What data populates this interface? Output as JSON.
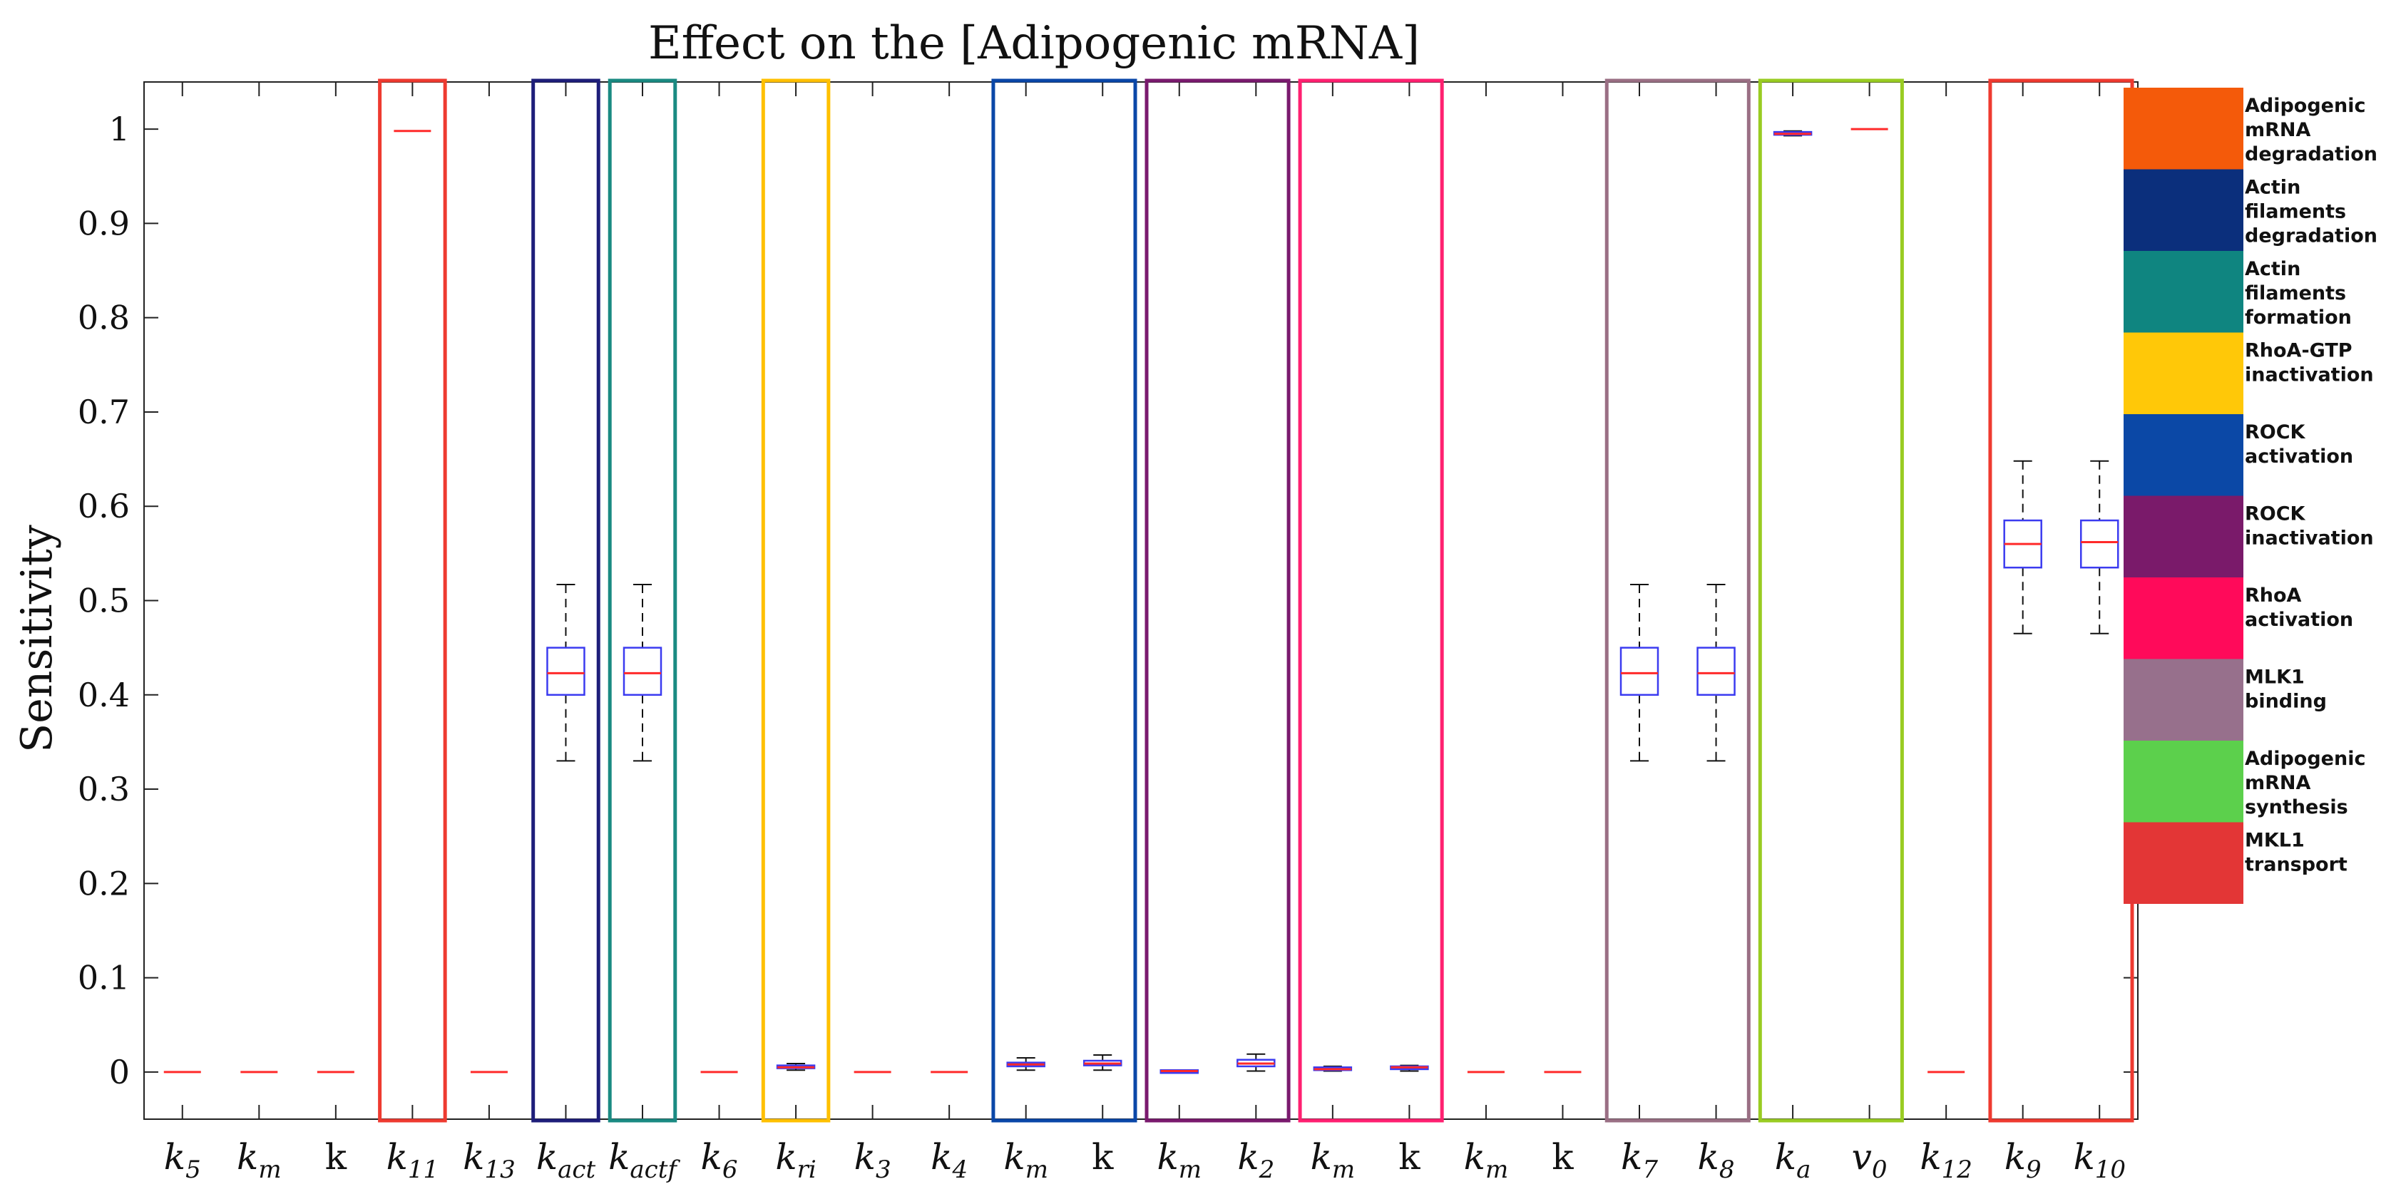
{
  "chart_data": {
    "type": "box",
    "title": "Effect on the [Adipogenic mRNA]",
    "ylabel": "Sensitivity",
    "xlabel": "",
    "ylim": [
      -0.05,
      1.05
    ],
    "yticks": [
      "0",
      "0.1",
      "0.2",
      "0.3",
      "0.4",
      "0.5",
      "0.6",
      "0.7",
      "0.8",
      "0.9",
      "1"
    ],
    "ytick_values": [
      0,
      0.1,
      0.2,
      0.3,
      0.4,
      0.5,
      0.6,
      0.7,
      0.8,
      0.9,
      1.0
    ],
    "categories": [
      {
        "base": "k",
        "sub": "5",
        "italic": true
      },
      {
        "base": "k",
        "sub": "m",
        "italic": true
      },
      {
        "base": "k",
        "sub": "",
        "italic": false
      },
      {
        "base": "k",
        "sub": "11",
        "italic": true
      },
      {
        "base": "k",
        "sub": "13",
        "italic": true
      },
      {
        "base": "k",
        "sub": "act",
        "italic": true
      },
      {
        "base": "k",
        "sub": "actf",
        "italic": true
      },
      {
        "base": "k",
        "sub": "6",
        "italic": true
      },
      {
        "base": "k",
        "sub": "ri",
        "italic": true
      },
      {
        "base": "k",
        "sub": "3",
        "italic": true
      },
      {
        "base": "k",
        "sub": "4",
        "italic": true
      },
      {
        "base": "k",
        "sub": "m",
        "italic": true
      },
      {
        "base": "k",
        "sub": "",
        "italic": false
      },
      {
        "base": "k",
        "sub": "m",
        "italic": true
      },
      {
        "base": "k",
        "sub": "2",
        "italic": true
      },
      {
        "base": "k",
        "sub": "m",
        "italic": true
      },
      {
        "base": "k",
        "sub": "",
        "italic": false
      },
      {
        "base": "k",
        "sub": "m",
        "italic": true
      },
      {
        "base": "k",
        "sub": "",
        "italic": false
      },
      {
        "base": "k",
        "sub": "7",
        "italic": true
      },
      {
        "base": "k",
        "sub": "8",
        "italic": true
      },
      {
        "base": "k",
        "sub": "a",
        "italic": true
      },
      {
        "base": "v",
        "sub": "0",
        "italic": true
      },
      {
        "base": "k",
        "sub": "12",
        "italic": true
      },
      {
        "base": "k",
        "sub": "9",
        "italic": true
      },
      {
        "base": "k",
        "sub": "10",
        "italic": true
      }
    ],
    "boxes": [
      {
        "min": 0,
        "q1": 0,
        "median": 0,
        "q3": 0,
        "max": 0
      },
      {
        "min": 0,
        "q1": 0,
        "median": 0,
        "q3": 0,
        "max": 0
      },
      {
        "min": 0,
        "q1": 0,
        "median": 0,
        "q3": 0,
        "max": 0
      },
      {
        "min": 0.998,
        "q1": 0.998,
        "median": 0.998,
        "q3": 0.998,
        "max": 0.998
      },
      {
        "min": 0,
        "q1": 0,
        "median": 0,
        "q3": 0,
        "max": 0
      },
      {
        "min": 0.33,
        "q1": 0.4,
        "median": 0.423,
        "q3": 0.45,
        "max": 0.517
      },
      {
        "min": 0.33,
        "q1": 0.4,
        "median": 0.423,
        "q3": 0.45,
        "max": 0.517
      },
      {
        "min": 0,
        "q1": 0,
        "median": 0,
        "q3": 0,
        "max": 0
      },
      {
        "min": 0.002,
        "q1": 0.004,
        "median": 0.005,
        "q3": 0.007,
        "max": 0.009
      },
      {
        "min": 0,
        "q1": 0,
        "median": 0,
        "q3": 0,
        "max": 0
      },
      {
        "min": 0,
        "q1": 0,
        "median": 0,
        "q3": 0,
        "max": 0
      },
      {
        "min": 0.002,
        "q1": 0.006,
        "median": 0.008,
        "q3": 0.01,
        "max": 0.015
      },
      {
        "min": 0.002,
        "q1": 0.007,
        "median": 0.009,
        "q3": 0.012,
        "max": 0.018
      },
      {
        "min": 0,
        "q1": 0,
        "median": 0.001,
        "q3": 0.002,
        "max": 0.002
      },
      {
        "min": 0.001,
        "q1": 0.006,
        "median": 0.009,
        "q3": 0.013,
        "max": 0.019
      },
      {
        "min": 0.001,
        "q1": 0.002,
        "median": 0.003,
        "q3": 0.005,
        "max": 0.006
      },
      {
        "min": 0.001,
        "q1": 0.003,
        "median": 0.005,
        "q3": 0.006,
        "max": 0.007
      },
      {
        "min": 0,
        "q1": 0,
        "median": 0,
        "q3": 0,
        "max": 0
      },
      {
        "min": 0,
        "q1": 0,
        "median": 0,
        "q3": 0,
        "max": 0
      },
      {
        "min": 0.33,
        "q1": 0.4,
        "median": 0.423,
        "q3": 0.45,
        "max": 0.517
      },
      {
        "min": 0.33,
        "q1": 0.4,
        "median": 0.423,
        "q3": 0.45,
        "max": 0.517
      },
      {
        "min": 0.993,
        "q1": 0.994,
        "median": 0.995,
        "q3": 0.997,
        "max": 0.998
      },
      {
        "min": 1.0,
        "q1": 1.0,
        "median": 1.0,
        "q3": 1.0,
        "max": 1.0
      },
      {
        "min": 0,
        "q1": 0,
        "median": 0,
        "q3": 0,
        "max": 0
      },
      {
        "min": 0.465,
        "q1": 0.535,
        "median": 0.56,
        "q3": 0.585,
        "max": 0.648
      },
      {
        "min": 0.465,
        "q1": 0.535,
        "median": 0.562,
        "q3": 0.585,
        "max": 0.648
      }
    ],
    "box_color": "#3b3bf0",
    "median_color": "#ff2a2a",
    "whisker_color": "#111111",
    "groups": [
      {
        "from": 3,
        "to": 3,
        "color": "#ee3a30"
      },
      {
        "from": 5,
        "to": 5,
        "color": "#1e1e7a"
      },
      {
        "from": 6,
        "to": 6,
        "color": "#1a8a82"
      },
      {
        "from": 8,
        "to": 8,
        "color": "#ffc000"
      },
      {
        "from": 11,
        "to": 12,
        "color": "#0a47a8"
      },
      {
        "from": 13,
        "to": 14,
        "color": "#7a1a6e"
      },
      {
        "from": 15,
        "to": 16,
        "color": "#ff2070"
      },
      {
        "from": 19,
        "to": 20,
        "color": "#9a6f84"
      },
      {
        "from": 21,
        "to": 22,
        "color": "#99cc22"
      },
      {
        "from": 24,
        "to": 25,
        "color": "#ee3a30"
      }
    ],
    "legend": [
      {
        "lines": [
          "Adipogenic",
          "mRNA",
          "degradation"
        ],
        "color": "#f45a0a"
      },
      {
        "lines": [
          "Actin",
          "filaments",
          "degradation"
        ],
        "color": "#0b2f7c"
      },
      {
        "lines": [
          "Actin",
          "filaments",
          "formation"
        ],
        "color": "#0f8580"
      },
      {
        "lines": [
          "RhoA-GTP",
          "inactivation"
        ],
        "color": "#ffc808"
      },
      {
        "lines": [
          "ROCK",
          "activation"
        ],
        "color": "#0b48a6"
      },
      {
        "lines": [
          "ROCK",
          "inactivation"
        ],
        "color": "#7a1a6a"
      },
      {
        "lines": [
          "RhoA",
          "activation"
        ],
        "color": "#ff0a5a"
      },
      {
        "lines": [
          "MLK1",
          "binding"
        ],
        "color": "#97708c"
      },
      {
        "lines": [
          "Adipogenic",
          "mRNA",
          "synthesis"
        ],
        "color": "#5cd04c"
      },
      {
        "lines": [
          "MKL1",
          "transport"
        ],
        "color": "#e33636"
      }
    ]
  }
}
